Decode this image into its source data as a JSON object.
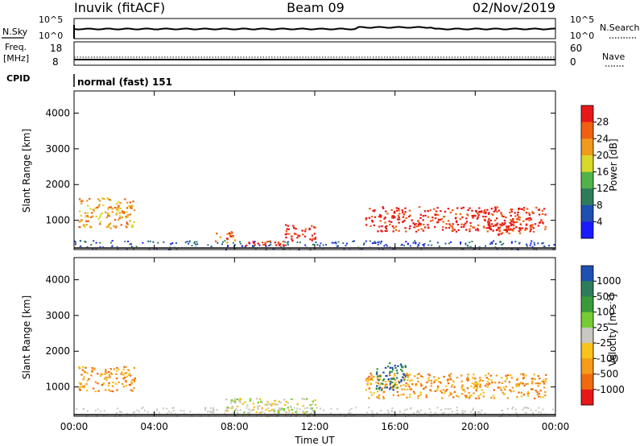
{
  "header": {
    "station": "Inuvik (fitACF)",
    "beam": "Beam 09",
    "date": "02/Nov/2019"
  },
  "noise_panel": {
    "left_label": "N.Sky",
    "right_label": "N.Search",
    "left_ticks": [
      "10^5",
      "10^0"
    ],
    "right_ticks": [
      "10^5",
      "10^0"
    ]
  },
  "freq_panel": {
    "left_label_line1": "Freq.",
    "left_label_line2": "[MHz]",
    "right_label": "Nave",
    "left_ticks": [
      "18",
      "8"
    ],
    "right_ticks": [
      "60",
      "0"
    ]
  },
  "cpid": {
    "label": "CPID",
    "value": "normal (fast) 151"
  },
  "time_axis": {
    "label": "Time UT",
    "ticks": [
      "00:00",
      "04:00",
      "08:00",
      "12:00",
      "16:00",
      "20:00",
      "00:00"
    ]
  },
  "chart_data": [
    {
      "type": "heatmap",
      "panel": "power",
      "ylabel": "Slant Range [km]",
      "yticks": [
        "1000",
        "2000",
        "3000",
        "4000"
      ],
      "ylim": [
        180,
        4620
      ],
      "xlim_hours": [
        0,
        24
      ],
      "colorbar": {
        "label": "Power [dB]",
        "ticks": [
          "4",
          "8",
          "12",
          "16",
          "20",
          "24",
          "28"
        ],
        "colors": [
          "#1a1aff",
          "#1f4fb0",
          "#2e7d5a",
          "#52b34a",
          "#d8d82a",
          "#f09a1c",
          "#f06010",
          "#e81818"
        ]
      },
      "regions": [
        {
          "t0": 0.2,
          "t1": 3.0,
          "r0": 800,
          "r1": 1650,
          "level": 5
        },
        {
          "t0": 7.0,
          "t1": 8.0,
          "r0": 400,
          "r1": 700,
          "level": 6
        },
        {
          "t0": 8.0,
          "t1": 10.5,
          "r0": 300,
          "r1": 450,
          "level": 7
        },
        {
          "t0": 10.5,
          "t1": 12.0,
          "r0": 450,
          "r1": 900,
          "level": 7
        },
        {
          "t0": 14.5,
          "t1": 23.5,
          "r0": 700,
          "r1": 1400,
          "level": 7
        },
        {
          "t0": 20.5,
          "t1": 22.5,
          "r0": 600,
          "r1": 1000,
          "level": 7
        }
      ]
    },
    {
      "type": "heatmap",
      "panel": "velocity",
      "ylabel": "Slant Range [km]",
      "yticks": [
        "1000",
        "2000",
        "3000",
        "4000"
      ],
      "ylim": [
        180,
        4620
      ],
      "xlim_hours": [
        0,
        24
      ],
      "colorbar": {
        "label": "Velocity [m s-1]",
        "ticks": [
          "1000",
          "500",
          "100",
          "25",
          "-25",
          "-100",
          "-500",
          "-1000"
        ],
        "colors": [
          "#1f4fb0",
          "#2e7d5a",
          "#3a9a3a",
          "#77cc33",
          "#c8c8c0",
          "#f7c21a",
          "#f59a1a",
          "#f06a10",
          "#e81818"
        ]
      },
      "regions": [
        {
          "t0": 0.2,
          "t1": 3.0,
          "r0": 900,
          "r1": 1600,
          "level": 6
        },
        {
          "t0": 7.5,
          "t1": 12.0,
          "r0": 200,
          "r1": 700,
          "level": 4
        },
        {
          "t0": 14.5,
          "t1": 23.5,
          "r0": 700,
          "r1": 1400,
          "level": 6
        },
        {
          "t0": 15.0,
          "t1": 16.5,
          "r0": 900,
          "r1": 1700,
          "level": 1
        }
      ]
    }
  ]
}
